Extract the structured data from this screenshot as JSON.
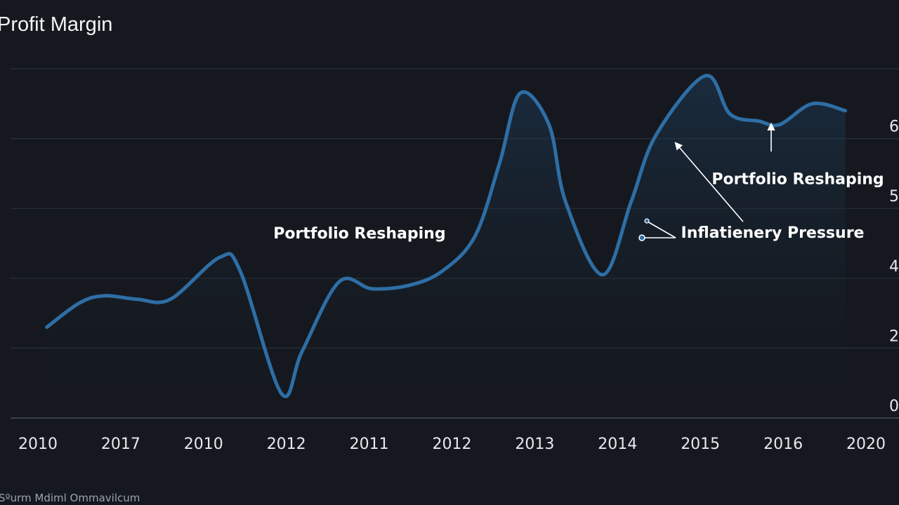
{
  "chart_data": {
    "type": "line",
    "title": "Profit Margin",
    "source": "Sºurm Mdiml Ommavilcum",
    "grid": true,
    "colors": {
      "background": "#15191f",
      "line": "#2e6ea6",
      "grid": "#2a3038",
      "text": "#e6e9ee",
      "annotation": "#ffffff"
    },
    "x_tick_labels": [
      "2010",
      "2017",
      "2010",
      "2012",
      "2011",
      "2012",
      "2013",
      "2014",
      "2015",
      "2016",
      "2020"
    ],
    "y_tick_labels": [
      "0",
      "2",
      "4",
      "5",
      "6"
    ],
    "ylim": [
      0,
      10
    ],
    "x": [
      0.1,
      0.5,
      0.8,
      1.2,
      1.6,
      2.2,
      2.45,
      2.95,
      3.2,
      3.65,
      4.05,
      4.5,
      4.9,
      5.3,
      5.6,
      5.85,
      6.2,
      6.4,
      6.85,
      7.2,
      7.5,
      8.1,
      8.4,
      8.75,
      9.0,
      9.4,
      9.8
    ],
    "y": [
      2.6,
      3.3,
      3.5,
      3.4,
      3.4,
      4.6,
      4.2,
      0.7,
      1.9,
      3.9,
      3.7,
      3.8,
      4.2,
      5.2,
      7.3,
      9.3,
      8.4,
      6.2,
      4.1,
      6.2,
      8.1,
      9.8,
      8.7,
      8.5,
      8.4,
      9.0,
      8.8
    ],
    "annotations": [
      {
        "text": "Portfolio Reshaping",
        "x": 3.95,
        "y": 5.3
      },
      {
        "text": "Inflatienery Pressure",
        "x": 8.3,
        "y": 5.3
      },
      {
        "text": "Portfolio Reshaping",
        "x": 9.0,
        "y": 7.2
      }
    ]
  }
}
